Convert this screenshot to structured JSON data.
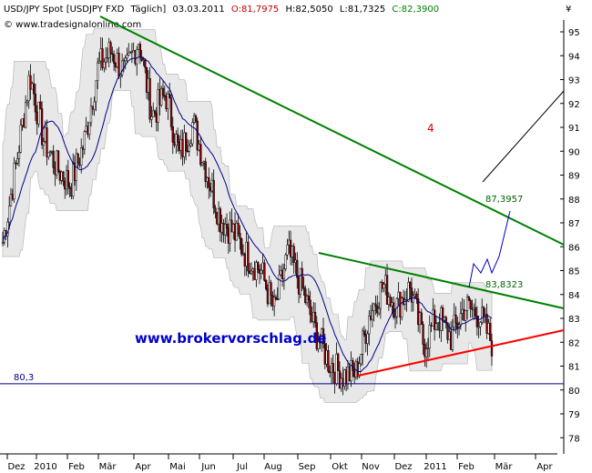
{
  "header": {
    "symbol": "USD/JPY Spot [USDJPY FXD",
    "period": "Täglich]",
    "date": "03.03.2011",
    "open": "O:81,7975",
    "high": "H:82,5050",
    "low": "L:81,7325",
    "close": "C:82,3900"
  },
  "watermark": "© www.tradesignalonline.com",
  "brand": "www.brokervorschlag.de",
  "currency": "¥",
  "colors": {
    "up_candle": "#ffffff",
    "down_candle": "#8b0000",
    "band_fill": "#e8e8e8",
    "ma": "#00008b",
    "green_trend": "#008000",
    "red_trend": "#ff0000",
    "projection": "#0000cd"
  },
  "chart_data": {
    "type": "line",
    "subtype": "candlestick",
    "ylim": [
      77.6,
      96.2
    ],
    "yticks": [
      "95",
      "94",
      "93",
      "92",
      "91",
      "90",
      "89",
      "88",
      "87",
      "86",
      "85",
      "84",
      "83",
      "82",
      "81",
      "80",
      "79",
      "78"
    ],
    "xticks": [
      "Dez",
      "2010",
      "Feb",
      "Mär",
      "Apr",
      "Mai",
      "Jun",
      "Jul",
      "Aug",
      "Sep",
      "Okt",
      "Nov",
      "Dez",
      "2011",
      "Feb",
      "Mär",
      "Apr"
    ],
    "annotations": {
      "label_upper": "87,3957",
      "label_triangle": "83,8323",
      "wave_count": "4",
      "support_line": "80,3"
    },
    "price_path": [
      {
        "x": "Dez 2009",
        "y": 86.2
      },
      {
        "x": "Dez 2009",
        "y": 89.5
      },
      {
        "x": "2010",
        "y": 93.2
      },
      {
        "x": "Jan 2010",
        "y": 90.5
      },
      {
        "x": "Feb 2010",
        "y": 89.3
      },
      {
        "x": "Feb 2010",
        "y": 88.6
      },
      {
        "x": "Mär 2010",
        "y": 90.4
      },
      {
        "x": "Mär 2010",
        "y": 93.5
      },
      {
        "x": "Apr 2010",
        "y": 94.2
      },
      {
        "x": "Apr 2010",
        "y": 93.2
      },
      {
        "x": "Apr 2010",
        "y": 94.7
      },
      {
        "x": "Mai 2010",
        "y": 91.5
      },
      {
        "x": "Mai 2010",
        "y": 92.4
      },
      {
        "x": "Mai 2010",
        "y": 89.8
      },
      {
        "x": "Jun 2010",
        "y": 91.2
      },
      {
        "x": "Jun 2010",
        "y": 89.2
      },
      {
        "x": "Jul 2010",
        "y": 87.2
      },
      {
        "x": "Jul 2010",
        "y": 86.6
      },
      {
        "x": "Aug 2010",
        "y": 85.6
      },
      {
        "x": "Aug 2010",
        "y": 85.0
      },
      {
        "x": "Sep 2010",
        "y": 83.3
      },
      {
        "x": "Sep 2010",
        "y": 85.8
      },
      {
        "x": "Sep 2010",
        "y": 84.3
      },
      {
        "x": "Okt 2010",
        "y": 82.5
      },
      {
        "x": "Okt 2010",
        "y": 81.2
      },
      {
        "x": "Okt 2010",
        "y": 80.6
      },
      {
        "x": "Nov 2010",
        "y": 80.7
      },
      {
        "x": "Nov 2010",
        "y": 83.2
      },
      {
        "x": "Nov 2010",
        "y": 84.4
      },
      {
        "x": "Dez 2010",
        "y": 83.5
      },
      {
        "x": "Dez 2010",
        "y": 84.3
      },
      {
        "x": "Dez 2010",
        "y": 81.9
      },
      {
        "x": "2011",
        "y": 83.1
      },
      {
        "x": "Jan 2011",
        "y": 82.2
      },
      {
        "x": "Feb 2011",
        "y": 83.5
      },
      {
        "x": "Feb 2011",
        "y": 83.2
      },
      {
        "x": "Mär 2011",
        "y": 82.0
      }
    ],
    "projection_path": [
      {
        "x": "Feb 2011",
        "y": 83.8
      },
      {
        "x": "Feb 2011",
        "y": 85.0
      },
      {
        "x": "Feb 2011",
        "y": 84.6
      },
      {
        "x": "Mär 2011",
        "y": 85.6
      },
      {
        "x": "Mär 2011",
        "y": 85.0
      },
      {
        "x": "Mär 2011",
        "y": 87.2
      }
    ]
  }
}
